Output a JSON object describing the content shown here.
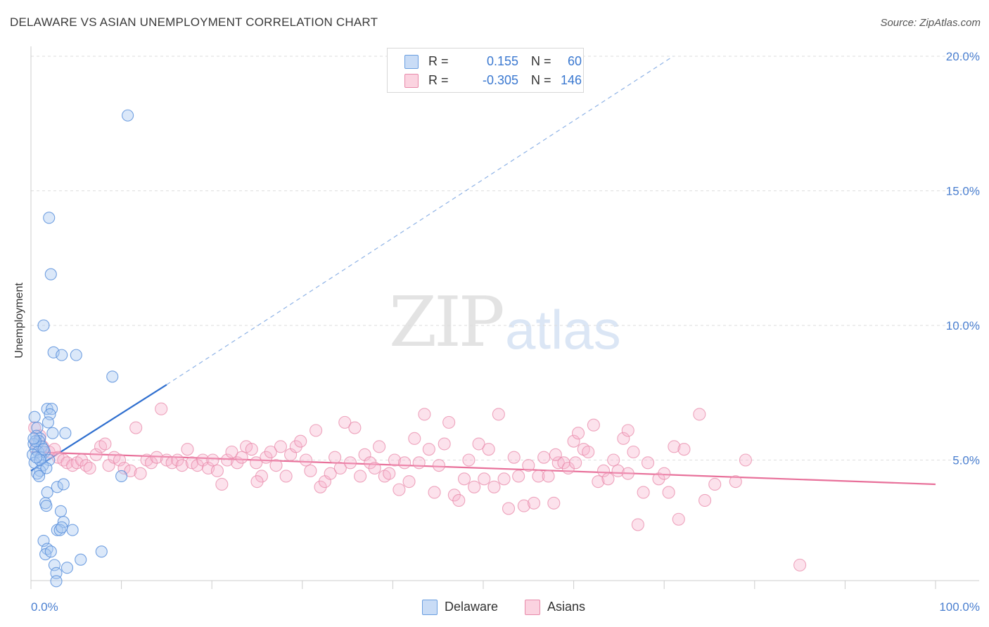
{
  "header": {
    "title": "DELAWARE VS ASIAN UNEMPLOYMENT CORRELATION CHART",
    "source": "Source: ZipAtlas.com"
  },
  "watermark": {
    "zip": "ZIP",
    "atlas": "atlas"
  },
  "legend": {
    "rows": [
      {
        "r_label": "R =",
        "r_value": "0.155",
        "n_label": "N =",
        "n_value": "60",
        "color": "#a9c8f0",
        "border": "#6a9ee0"
      },
      {
        "r_label": "R =",
        "r_value": "-0.305",
        "n_label": "N =",
        "n_value": "146",
        "color": "#f6bcd0",
        "border": "#e88aaa"
      }
    ],
    "bottom": [
      {
        "label": "Delaware",
        "color": "#a9c8f0",
        "border": "#6a9ee0"
      },
      {
        "label": "Asians",
        "color": "#f6bcd0",
        "border": "#e88aaa"
      }
    ]
  },
  "chart_data": {
    "type": "scatter",
    "title": "DELAWARE VS ASIAN UNEMPLOYMENT CORRELATION CHART",
    "xlabel": "",
    "ylabel": "Unemployment",
    "xlim": [
      0,
      100
    ],
    "ylim": [
      0,
      20.5
    ],
    "x_tick_labels": [
      "0.0%",
      "100.0%"
    ],
    "y_ticks": [
      5,
      10,
      15,
      20
    ],
    "y_tick_labels": [
      "5.0%",
      "10.0%",
      "15.0%",
      "20.0%"
    ],
    "grid": true,
    "legend_position": "top-center",
    "colors": {
      "delaware": "#6a9ee0",
      "asians": "#e88aaa",
      "delaware_line": "#2f6fcf",
      "asians_line": "#e8709a"
    },
    "series": [
      {
        "name": "Delaware",
        "trend": {
          "x0": 0,
          "y0": 4.6,
          "x1": 15,
          "y1": 7.8,
          "dashed_to_x": 71,
          "dashed_to_y": 20.0
        },
        "points": [
          [
            10.7,
            17.8
          ],
          [
            2.0,
            14.0
          ],
          [
            2.2,
            11.9
          ],
          [
            1.4,
            10.0
          ],
          [
            2.5,
            9.0
          ],
          [
            3.4,
            8.9
          ],
          [
            5.0,
            8.9
          ],
          [
            9.0,
            8.1
          ],
          [
            1.8,
            6.9
          ],
          [
            2.3,
            6.9
          ],
          [
            0.4,
            6.6
          ],
          [
            2.1,
            6.7
          ],
          [
            1.9,
            6.4
          ],
          [
            0.7,
            6.2
          ],
          [
            2.4,
            6.0
          ],
          [
            3.8,
            6.0
          ],
          [
            0.6,
            5.9
          ],
          [
            1.0,
            5.8
          ],
          [
            0.9,
            5.7
          ],
          [
            0.3,
            5.6
          ],
          [
            1.2,
            5.5
          ],
          [
            0.5,
            5.4
          ],
          [
            0.8,
            5.3
          ],
          [
            1.5,
            5.3
          ],
          [
            0.2,
            5.2
          ],
          [
            1.1,
            5.1
          ],
          [
            2.0,
            5.0
          ],
          [
            0.4,
            4.9
          ],
          [
            1.3,
            4.8
          ],
          [
            1.0,
            4.6
          ],
          [
            0.7,
            4.5
          ],
          [
            0.9,
            4.4
          ],
          [
            10.0,
            4.4
          ],
          [
            2.9,
            4.0
          ],
          [
            3.6,
            4.1
          ],
          [
            1.8,
            3.8
          ],
          [
            1.6,
            3.4
          ],
          [
            1.7,
            3.3
          ],
          [
            3.3,
            3.1
          ],
          [
            3.6,
            2.7
          ],
          [
            2.9,
            2.4
          ],
          [
            3.2,
            2.4
          ],
          [
            4.6,
            2.4
          ],
          [
            3.4,
            2.5
          ],
          [
            1.4,
            2.0
          ],
          [
            1.8,
            1.7
          ],
          [
            1.6,
            1.5
          ],
          [
            2.2,
            1.6
          ],
          [
            7.8,
            1.6
          ],
          [
            5.5,
            1.3
          ],
          [
            2.6,
            1.1
          ],
          [
            4.0,
            1.0
          ],
          [
            2.8,
            0.8
          ],
          [
            2.8,
            0.5
          ],
          [
            1.0,
            5.0
          ],
          [
            0.5,
            5.7
          ],
          [
            1.4,
            5.4
          ],
          [
            0.6,
            5.1
          ],
          [
            1.7,
            4.7
          ],
          [
            0.3,
            5.8
          ]
        ]
      },
      {
        "name": "Asians",
        "trend": {
          "x0": 0,
          "y0": 5.3,
          "x1": 100,
          "y1": 4.1
        },
        "points": [
          [
            0.4,
            6.2
          ],
          [
            1.0,
            5.9
          ],
          [
            0.6,
            5.6
          ],
          [
            1.3,
            5.5
          ],
          [
            2.0,
            5.3
          ],
          [
            2.6,
            5.4
          ],
          [
            3.0,
            5.1
          ],
          [
            3.6,
            5.0
          ],
          [
            4.0,
            4.9
          ],
          [
            4.6,
            4.8
          ],
          [
            5.1,
            4.9
          ],
          [
            5.6,
            5.0
          ],
          [
            6.1,
            4.8
          ],
          [
            6.5,
            4.7
          ],
          [
            7.2,
            5.2
          ],
          [
            7.7,
            5.5
          ],
          [
            8.2,
            5.6
          ],
          [
            8.6,
            4.8
          ],
          [
            9.2,
            5.1
          ],
          [
            9.8,
            5.0
          ],
          [
            10.3,
            4.7
          ],
          [
            11.0,
            4.6
          ],
          [
            11.6,
            6.2
          ],
          [
            12.1,
            4.5
          ],
          [
            12.8,
            5.0
          ],
          [
            13.3,
            4.9
          ],
          [
            13.9,
            5.1
          ],
          [
            14.4,
            6.9
          ],
          [
            15.0,
            5.0
          ],
          [
            15.6,
            4.9
          ],
          [
            16.2,
            5.0
          ],
          [
            16.7,
            4.8
          ],
          [
            17.3,
            5.4
          ],
          [
            17.8,
            4.9
          ],
          [
            18.4,
            4.8
          ],
          [
            19.0,
            5.0
          ],
          [
            19.6,
            4.7
          ],
          [
            20.1,
            5.0
          ],
          [
            20.6,
            4.6
          ],
          [
            21.1,
            4.1
          ],
          [
            21.7,
            5.0
          ],
          [
            22.2,
            5.3
          ],
          [
            22.8,
            4.9
          ],
          [
            23.3,
            5.1
          ],
          [
            23.8,
            5.5
          ],
          [
            24.4,
            5.4
          ],
          [
            24.9,
            4.9
          ],
          [
            25.5,
            4.4
          ],
          [
            26.0,
            5.1
          ],
          [
            26.5,
            5.3
          ],
          [
            27.1,
            4.8
          ],
          [
            27.6,
            5.5
          ],
          [
            28.2,
            4.4
          ],
          [
            28.7,
            5.2
          ],
          [
            29.3,
            5.5
          ],
          [
            29.8,
            5.7
          ],
          [
            30.4,
            5.0
          ],
          [
            30.9,
            4.6
          ],
          [
            31.5,
            6.1
          ],
          [
            32.0,
            4.0
          ],
          [
            32.5,
            4.2
          ],
          [
            33.1,
            4.5
          ],
          [
            33.6,
            5.1
          ],
          [
            34.2,
            4.7
          ],
          [
            34.7,
            6.4
          ],
          [
            35.3,
            4.9
          ],
          [
            35.8,
            6.2
          ],
          [
            36.4,
            4.4
          ],
          [
            36.9,
            5.2
          ],
          [
            37.5,
            4.9
          ],
          [
            38.0,
            4.7
          ],
          [
            38.5,
            5.5
          ],
          [
            39.1,
            4.4
          ],
          [
            39.6,
            4.5
          ],
          [
            40.2,
            5.0
          ],
          [
            40.7,
            3.9
          ],
          [
            41.3,
            4.9
          ],
          [
            41.8,
            4.2
          ],
          [
            42.4,
            5.8
          ],
          [
            42.9,
            4.9
          ],
          [
            43.5,
            6.7
          ],
          [
            44.0,
            5.4
          ],
          [
            44.6,
            3.8
          ],
          [
            45.1,
            4.8
          ],
          [
            45.7,
            5.6
          ],
          [
            46.2,
            6.4
          ],
          [
            46.8,
            3.7
          ],
          [
            47.3,
            3.5
          ],
          [
            47.9,
            4.3
          ],
          [
            48.4,
            5.0
          ],
          [
            49.0,
            4.0
          ],
          [
            49.5,
            5.6
          ],
          [
            50.1,
            4.3
          ],
          [
            50.6,
            5.4
          ],
          [
            51.2,
            4.0
          ],
          [
            51.7,
            6.7
          ],
          [
            52.3,
            4.3
          ],
          [
            52.8,
            3.2
          ],
          [
            53.4,
            5.1
          ],
          [
            53.9,
            4.4
          ],
          [
            54.5,
            3.3
          ],
          [
            55.0,
            4.8
          ],
          [
            55.6,
            3.4
          ],
          [
            56.1,
            4.4
          ],
          [
            56.7,
            5.1
          ],
          [
            57.2,
            4.4
          ],
          [
            57.8,
            3.4
          ],
          [
            58.3,
            4.9
          ],
          [
            58.9,
            4.9
          ],
          [
            59.4,
            4.7
          ],
          [
            60.0,
            5.7
          ],
          [
            60.5,
            6.0
          ],
          [
            61.1,
            5.4
          ],
          [
            61.6,
            5.3
          ],
          [
            62.2,
            6.3
          ],
          [
            62.7,
            4.2
          ],
          [
            63.3,
            4.6
          ],
          [
            63.8,
            4.3
          ],
          [
            64.4,
            5.0
          ],
          [
            64.9,
            4.6
          ],
          [
            65.5,
            5.8
          ],
          [
            66.0,
            4.5
          ],
          [
            66.6,
            5.3
          ],
          [
            67.1,
            2.6
          ],
          [
            67.7,
            3.8
          ],
          [
            68.2,
            4.9
          ],
          [
            69.4,
            4.3
          ],
          [
            70.0,
            4.5
          ],
          [
            70.5,
            3.8
          ],
          [
            71.1,
            5.5
          ],
          [
            71.6,
            2.8
          ],
          [
            72.2,
            5.4
          ],
          [
            73.9,
            6.7
          ],
          [
            74.5,
            3.5
          ],
          [
            75.6,
            4.1
          ],
          [
            77.9,
            4.2
          ],
          [
            79.0,
            5.0
          ],
          [
            85.0,
            1.1
          ],
          [
            66.0,
            6.1
          ],
          [
            60.2,
            4.9
          ],
          [
            58.0,
            5.2
          ],
          [
            25.0,
            4.2
          ]
        ]
      }
    ]
  }
}
